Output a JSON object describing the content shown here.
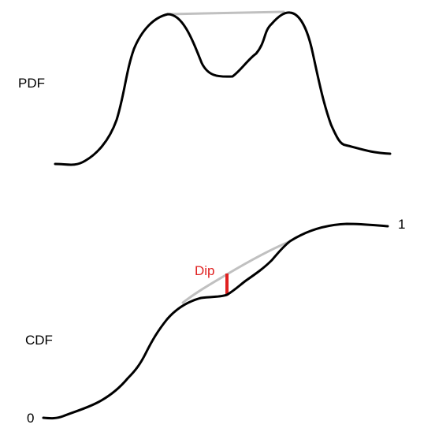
{
  "labels": {
    "pdf": "PDF",
    "cdf": "CDF",
    "cdf_max": "1",
    "cdf_min": "0",
    "dip": "Dip"
  },
  "colors": {
    "curve": "#000000",
    "hull": "#c0c0c0",
    "dip": "#e02020",
    "text": "#000000",
    "dip_text": "#e02020"
  }
}
